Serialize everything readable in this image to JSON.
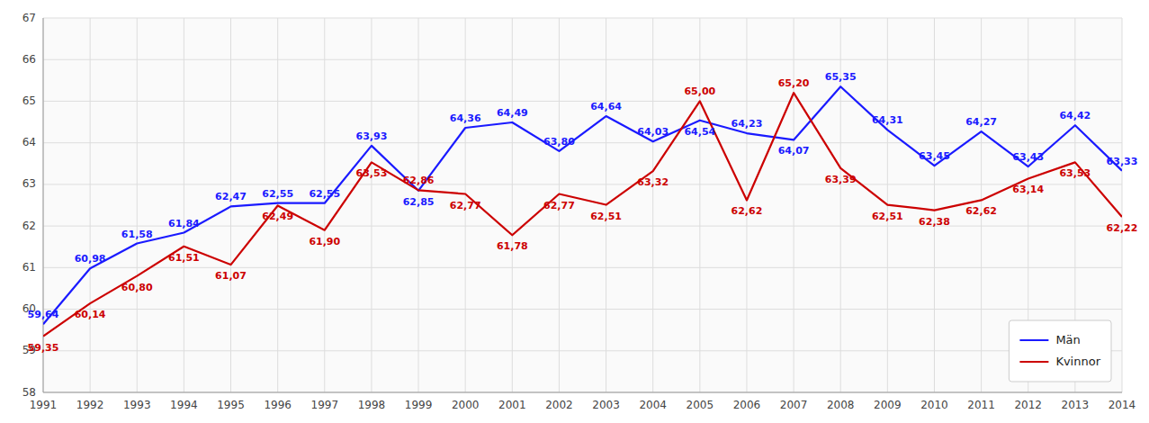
{
  "chart_data": {
    "type": "line",
    "x": [
      1991,
      1992,
      1993,
      1994,
      1995,
      1996,
      1997,
      1998,
      1999,
      2000,
      2001,
      2002,
      2003,
      2004,
      2005,
      2006,
      2007,
      2008,
      2009,
      2010,
      2011,
      2012,
      2013,
      2014
    ],
    "xlim": [
      1991,
      2014
    ],
    "xticks": [
      1991,
      1992,
      1993,
      1994,
      1995,
      1996,
      1997,
      1998,
      1999,
      2000,
      2001,
      2002,
      2003,
      2004,
      2005,
      2006,
      2007,
      2008,
      2009,
      2010,
      2011,
      2012,
      2013,
      2014
    ],
    "ylim": [
      58,
      67
    ],
    "yticks": [
      58,
      59,
      60,
      61,
      62,
      63,
      64,
      65,
      66,
      67
    ],
    "grid": true,
    "legend": "lower right",
    "data_labels": true,
    "series": [
      {
        "name": "Män",
        "color": "#1a1aff",
        "values": [
          59.64,
          60.98,
          61.58,
          61.84,
          62.47,
          62.55,
          62.55,
          63.93,
          62.85,
          64.36,
          64.49,
          63.8,
          64.64,
          64.03,
          64.54,
          64.23,
          64.07,
          65.35,
          64.31,
          63.45,
          64.27,
          63.43,
          64.42,
          63.33
        ],
        "value_labels": [
          "59,64",
          "60,98",
          "61,58",
          "61,84",
          "62,47",
          "62,55",
          "62,55",
          "63,93",
          "62,85",
          "64,36",
          "64,49",
          "63,80",
          "64,64",
          "64,03",
          "64,54",
          "64,23",
          "64,07",
          "65,35",
          "64,31",
          "63,45",
          "64,27",
          "63,43",
          "64,42",
          "63,33"
        ]
      },
      {
        "name": "Kvinnor",
        "color": "#cc0000",
        "values": [
          59.35,
          60.14,
          60.8,
          61.51,
          61.07,
          62.49,
          61.9,
          63.53,
          62.86,
          62.77,
          61.78,
          62.77,
          62.51,
          63.32,
          65.0,
          62.62,
          65.2,
          63.39,
          62.51,
          62.38,
          62.62,
          63.14,
          63.53,
          62.22
        ],
        "value_labels": [
          "59,35",
          "60,14",
          "60,80",
          "61,51",
          "61,07",
          "62,49",
          "61,90",
          "63,53",
          "62,86",
          "62,77",
          "61,78",
          "62,77",
          "62,51",
          "63,32",
          "65,00",
          "62,62",
          "65,20",
          "63,39",
          "62,51",
          "62,38",
          "62,62",
          "63,14",
          "63,53",
          "62,22"
        ]
      }
    ]
  }
}
